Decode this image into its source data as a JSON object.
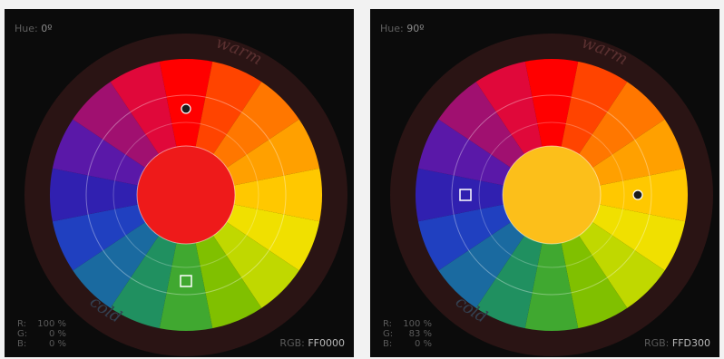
{
  "panels": [
    {
      "hue_label": "Hue:",
      "hue_value": "0º",
      "warm_label": "warm",
      "cold_label": "cold",
      "r_label": "R:",
      "r_value": "100 %",
      "g_label": "G:",
      "g_value": "0 %",
      "b_label": "B:",
      "b_value": "0 %",
      "hex_label": "RGB:",
      "hex_value": "FF0000",
      "center_color": "#ee1a1a",
      "markers": [
        {
          "type": "filled-circle",
          "angle": 0,
          "ring": "outer"
        },
        {
          "type": "square",
          "angle": 180,
          "ring": "outer"
        }
      ]
    },
    {
      "hue_label": "Hue:",
      "hue_value": "90º",
      "warm_label": "warm",
      "cold_label": "cold",
      "r_label": "R:",
      "r_value": "100 %",
      "g_label": "G:",
      "g_value": "83 %",
      "b_label": "B:",
      "b_value": "0 %",
      "hex_label": "RGB:",
      "hex_value": "FFD300",
      "center_color": "#fcbf1a",
      "markers": [
        {
          "type": "filled-circle",
          "angle": 90,
          "ring": "outer"
        },
        {
          "type": "square",
          "angle": 270,
          "ring": "outer"
        }
      ]
    }
  ],
  "wheel_colors": [
    "#ff0000",
    "#ff4400",
    "#ff7700",
    "#ffa000",
    "#ffc800",
    "#f0e000",
    "#c0d800",
    "#80c000",
    "#40a830",
    "#209060",
    "#1a6aa0",
    "#2040c0",
    "#3020b0",
    "#5a18a8",
    "#a01070",
    "#e0083a"
  ]
}
